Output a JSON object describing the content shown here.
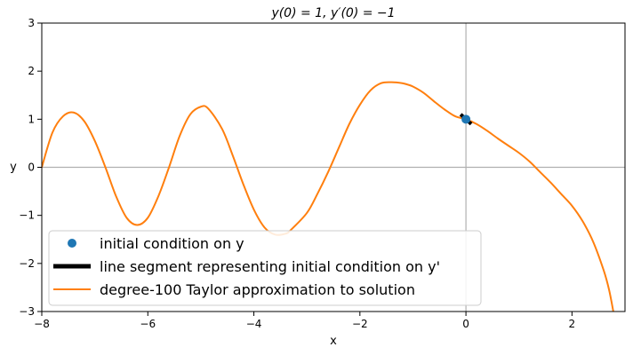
{
  "chart_data": {
    "type": "line",
    "title": "y(0) = 1, y′(0) = −1",
    "xlabel": "x",
    "ylabel": "y",
    "xlim": [
      -8,
      3
    ],
    "ylim": [
      -3,
      3
    ],
    "xticks": [
      -8,
      -6,
      -4,
      -2,
      0,
      2
    ],
    "yticks": [
      -3,
      -2,
      -1,
      0,
      1,
      2,
      3
    ],
    "xtick_labels": [
      "−8",
      "−6",
      "−4",
      "−2",
      "0",
      "2"
    ],
    "ytick_labels": [
      "−3",
      "−2",
      "−1",
      "0",
      "1",
      "2",
      "3"
    ],
    "grid": false,
    "reference_lines": {
      "x": 0,
      "y": 0
    },
    "legend": {
      "position": "lower-left",
      "entries": [
        "initial condition on y",
        "line segment representing initial condition on y'",
        "degree-100 Taylor approximation to solution"
      ]
    },
    "colors": {
      "point": "#1f77b4",
      "segment": "#000000",
      "curve": "#ff7f0e",
      "reference": "#b0b0b0"
    },
    "point": {
      "x": 0,
      "y": 1
    },
    "segment": {
      "x": [
        -0.1,
        0.1
      ],
      "y": [
        1.1,
        0.9
      ]
    },
    "series": [
      {
        "name": "degree-100 Taylor approximation to solution",
        "x": [
          -8.0,
          -7.8,
          -7.6,
          -7.4,
          -7.2,
          -7.0,
          -6.8,
          -6.6,
          -6.4,
          -6.2,
          -6.0,
          -5.8,
          -5.6,
          -5.4,
          -5.2,
          -5.0,
          -4.86,
          -4.6,
          -4.4,
          -4.2,
          -4.0,
          -3.8,
          -3.6,
          -3.4,
          -3.3,
          -3.0,
          -2.8,
          -2.6,
          -2.4,
          -2.2,
          -2.0,
          -1.8,
          -1.6,
          -1.4,
          -1.2,
          -1.1,
          -1.0,
          -0.8,
          -0.6,
          -0.4,
          -0.2,
          0.0,
          0.2,
          0.4,
          0.6,
          0.8,
          1.0,
          1.2,
          1.4,
          1.6,
          1.8,
          2.0,
          2.2,
          2.4,
          2.6,
          2.7,
          2.78
        ],
        "y": [
          0.0,
          0.72,
          1.06,
          1.14,
          0.96,
          0.55,
          0.0,
          -0.6,
          -1.05,
          -1.2,
          -1.05,
          -0.6,
          0.0,
          0.65,
          1.1,
          1.26,
          1.22,
          0.8,
          0.25,
          -0.35,
          -0.88,
          -1.25,
          -1.4,
          -1.38,
          -1.3,
          -0.95,
          -0.55,
          -0.1,
          0.4,
          0.9,
          1.3,
          1.6,
          1.75,
          1.77,
          1.75,
          1.72,
          1.68,
          1.55,
          1.37,
          1.2,
          1.06,
          1.0,
          0.9,
          0.76,
          0.6,
          0.45,
          0.3,
          0.12,
          -0.1,
          -0.32,
          -0.56,
          -0.8,
          -1.12,
          -1.55,
          -2.15,
          -2.55,
          -3.0
        ]
      }
    ]
  }
}
